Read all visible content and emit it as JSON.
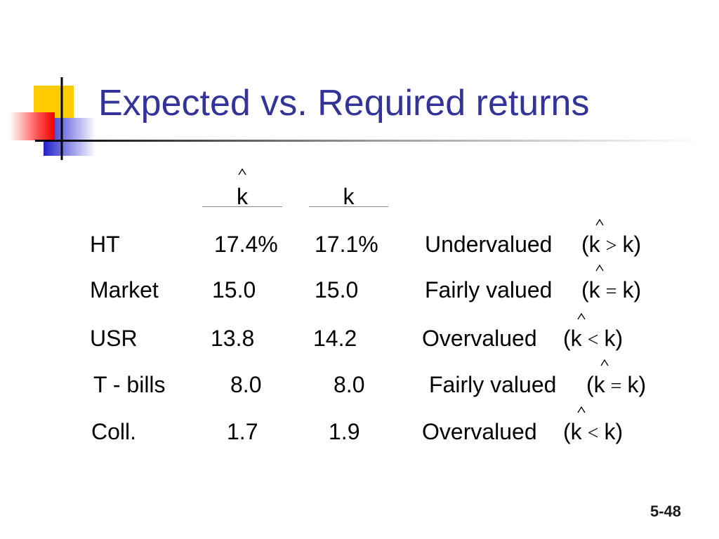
{
  "title": "Expected vs. Required returns",
  "columns": [
    "k",
    "k"
  ],
  "rows": [
    {
      "name": "HT",
      "expected": "17.4%",
      "required": "17.1%",
      "assessment": "Undervalued",
      "condition": {
        "left": "(k",
        "relation": ">",
        "right": "k)"
      }
    },
    {
      "name": "Market",
      "expected": "15.0",
      "required": "15.0",
      "assessment": "Fairly valued",
      "condition": {
        "left": "(k",
        "relation": "=",
        "right": "k)"
      }
    },
    {
      "name": "USR",
      "expected": "13.8",
      "required": "14.2",
      "assessment": "Overvalued",
      "condition": {
        "left": "(k",
        "relation": "<",
        "right": "k)"
      }
    },
    {
      "name": "T - bills",
      "expected": "8.0",
      "required": "8.0",
      "assessment": "Fairly valued",
      "condition": {
        "left": "(k",
        "relation": "=",
        "right": "k)"
      }
    },
    {
      "name": "Coll.",
      "expected": "1.7",
      "required": "1.9",
      "assessment": "Overvalued",
      "condition": {
        "left": "(k",
        "relation": "<",
        "right": "k)"
      }
    }
  ],
  "page_number": "5-48"
}
